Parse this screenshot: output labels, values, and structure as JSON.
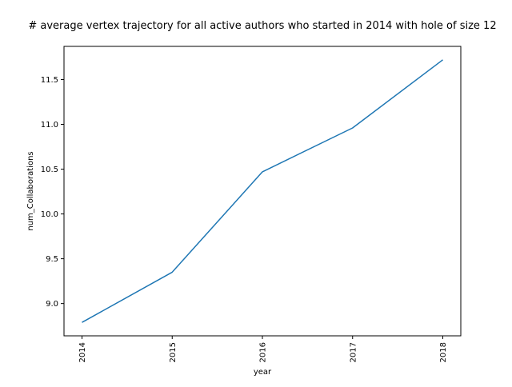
{
  "chart_data": {
    "type": "line",
    "title": "# average vertex trajectory for all active authors who started in 2014 with hole of size 12",
    "xlabel": "year",
    "ylabel": "num_Collaborations",
    "x": [
      "2014",
      "2015",
      "2016",
      "2017",
      "2018"
    ],
    "series": [
      {
        "values": [
          8.79,
          9.35,
          10.47,
          10.96,
          11.72
        ],
        "color": "#1f77b4"
      }
    ],
    "ylim": [
      8.64,
      11.87
    ],
    "yticks": [
      "9.0",
      "9.5",
      "10.0",
      "10.5",
      "11.0",
      "11.5"
    ],
    "grid": false,
    "legend": "none"
  }
}
